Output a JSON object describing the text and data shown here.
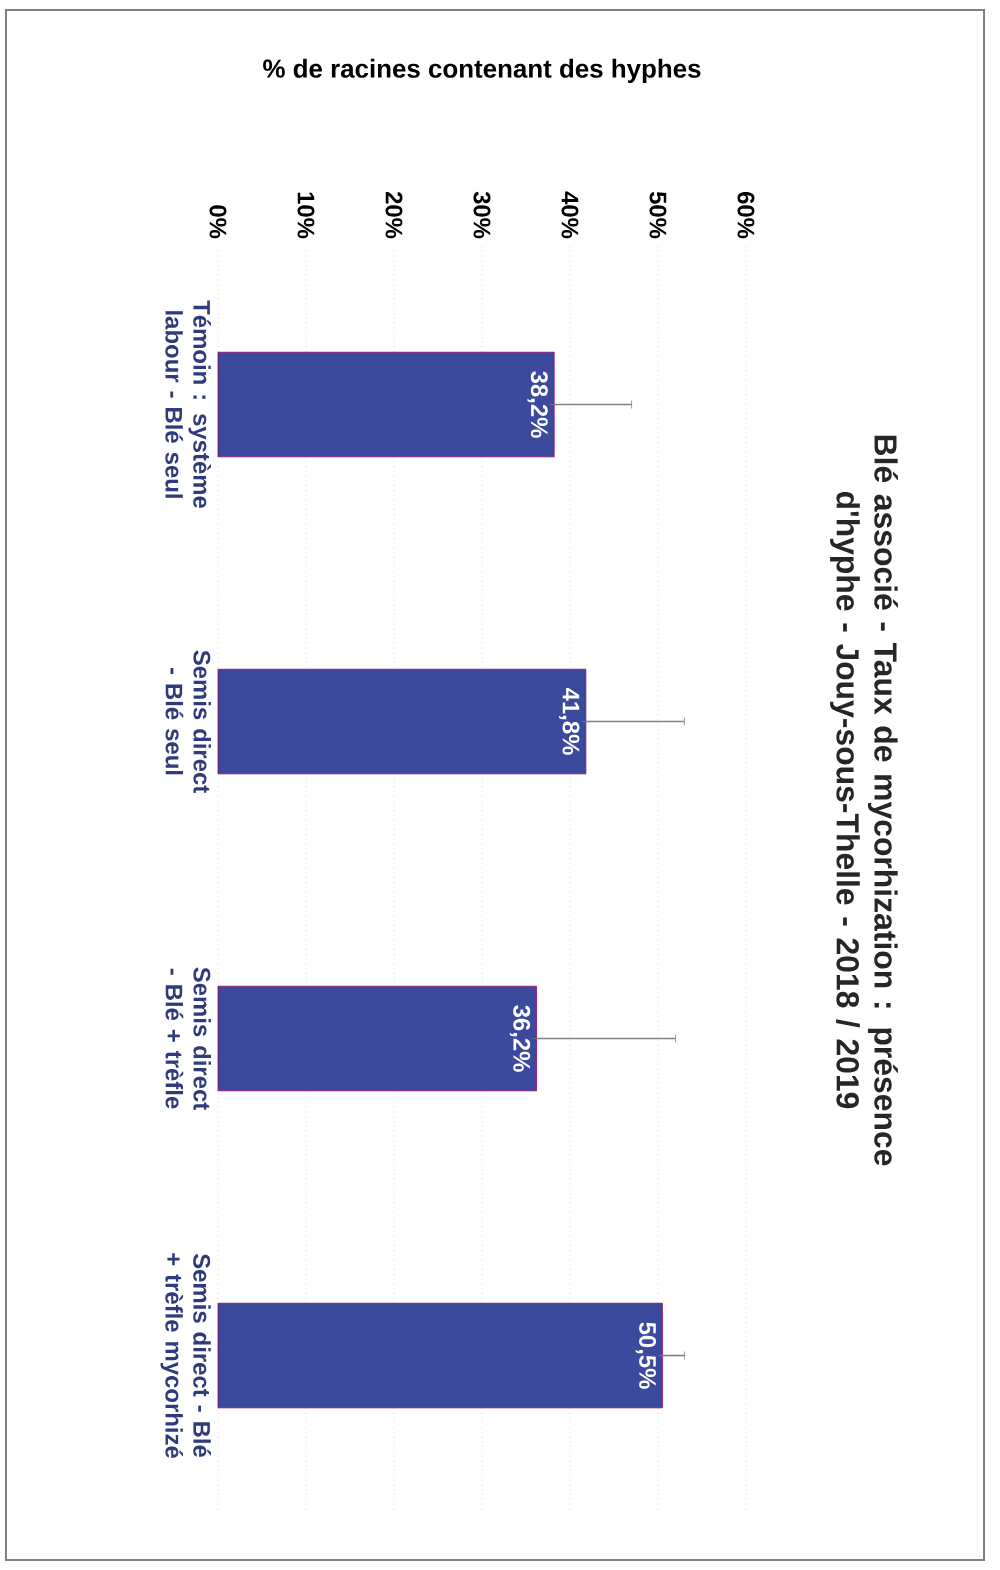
{
  "chart_data": {
    "type": "bar",
    "orientation": "horizontal",
    "title": "Blé associé - Taux de mycorhization : présence d'hyphe - Jouy-sous-Thelle - 2018 / 2019",
    "xlabel": "% de racines contenant des hyphes",
    "categories": [
      "Témoin : système labour - Blé seul",
      "Semis direct - Blé seul",
      "Semis direct - Blé + trèfle",
      "Semis direct - Blé + trèfle mycorhizé"
    ],
    "values": [
      38.2,
      41.8,
      36.2,
      50.5
    ],
    "errors": [
      [
        38.2,
        47
      ],
      [
        41.8,
        53
      ],
      [
        36.2,
        52
      ],
      [
        50.5,
        53
      ]
    ],
    "value_labels": [
      "38,2%",
      "41,8%",
      "36,2%",
      "50,5%"
    ],
    "color": "#3b4a9c",
    "xlim": [
      0,
      60
    ],
    "xticks": [
      {
        "value": 0,
        "label": "0%"
      },
      {
        "value": 10,
        "label": "10%"
      },
      {
        "value": 20,
        "label": "20%"
      },
      {
        "value": 30,
        "label": "30%"
      },
      {
        "value": 40,
        "label": "40%"
      },
      {
        "value": 50,
        "label": "50%"
      },
      {
        "value": 60,
        "label": "60%"
      }
    ],
    "grid": "x"
  }
}
